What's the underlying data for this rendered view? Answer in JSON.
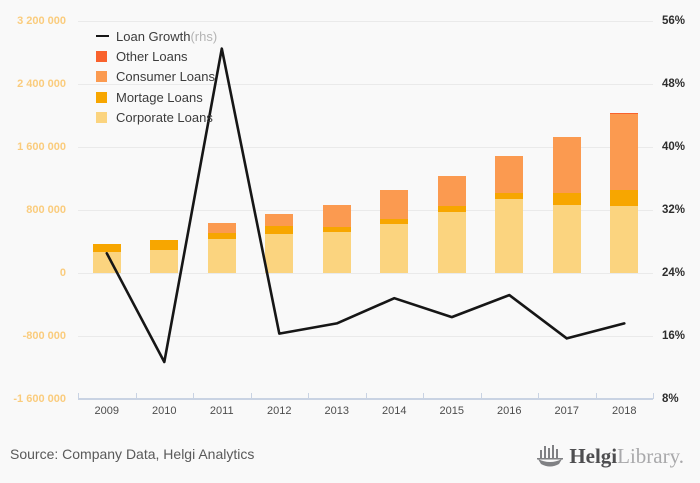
{
  "footer": {
    "source": "Source: Company Data, Helgi Analytics",
    "logo_bold": "Helgi",
    "logo_light": "Library."
  },
  "legend": [
    {
      "label": "Loan Growth",
      "suffix": " (rhs)",
      "type": "line",
      "color": "#161616"
    },
    {
      "label": "Other Loans",
      "suffix": "",
      "type": "box",
      "color": "#f9622d"
    },
    {
      "label": "Consumer Loans",
      "suffix": "",
      "type": "box",
      "color": "#fb9a50"
    },
    {
      "label": "Mortage Loans",
      "suffix": "",
      "type": "box",
      "color": "#f7a600"
    },
    {
      "label": "Corporate Loans",
      "suffix": "",
      "type": "box",
      "color": "#fbd47f"
    }
  ],
  "chart_data": {
    "type": "bar+line combo (stacked bars on left axis, line on right axis)",
    "categories": [
      "2009",
      "2010",
      "2011",
      "2012",
      "2013",
      "2014",
      "2015",
      "2016",
      "2017",
      "2018"
    ],
    "series": [
      {
        "name": "Corporate Loans",
        "type": "bar",
        "color": "#fbd47f",
        "values": [
          270000,
          295000,
          435000,
          490000,
          520000,
          625000,
          780000,
          940000,
          865000,
          850000
        ]
      },
      {
        "name": "Mortage Loans",
        "type": "bar",
        "color": "#f7a600",
        "values": [
          100000,
          130000,
          70000,
          110000,
          60000,
          65000,
          65000,
          80000,
          150000,
          200000
        ]
      },
      {
        "name": "Consumer Loans",
        "type": "bar",
        "color": "#fb9a50",
        "values": [
          0,
          0,
          125000,
          150000,
          280000,
          360000,
          390000,
          470000,
          710000,
          965000
        ]
      },
      {
        "name": "Other Loans",
        "type": "bar",
        "color": "#f9622d",
        "values": [
          0,
          0,
          0,
          0,
          0,
          0,
          0,
          0,
          0,
          20000
        ]
      },
      {
        "name": "Loan Growth (rhs)",
        "type": "line",
        "color": "#161616",
        "values": [
          26.5,
          12.7,
          52.5,
          16.3,
          17.6,
          20.8,
          18.4,
          21.2,
          15.7,
          17.6
        ]
      }
    ],
    "left_axis": {
      "label": "",
      "min": -1600000,
      "max": 3200000,
      "tick_step": 800000,
      "ticks": [
        "3 200 000",
        "2 400 000",
        "1 600 000",
        "800 000",
        "0",
        "-800 000",
        "-1 600 000"
      ],
      "color": "#facc7d"
    },
    "right_axis": {
      "label": "",
      "min": 8,
      "max": 56,
      "tick_step": 8,
      "ticks": [
        "56%",
        "48%",
        "40%",
        "32%",
        "24%",
        "16%",
        "8%"
      ],
      "color": "#2e2e2e"
    },
    "grid": "horizontal only",
    "legend_position": "top-left inside plot"
  }
}
